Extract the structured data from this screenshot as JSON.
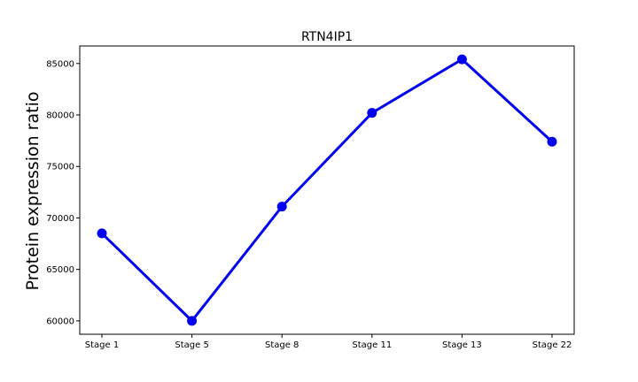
{
  "chart_data": {
    "type": "line",
    "title": "RTN4IP1",
    "xlabel": "",
    "ylabel": "Protein expression ratio",
    "categories": [
      "Stage 1",
      "Stage 5",
      "Stage 8",
      "Stage 11",
      "Stage 13",
      "Stage 22"
    ],
    "series": [
      {
        "values": [
          68500,
          60000,
          71100,
          80200,
          85400,
          77400
        ],
        "color": "#0000ee"
      }
    ],
    "ylim": [
      58700,
      86700
    ],
    "yticks": [
      60000,
      65000,
      70000,
      75000,
      80000,
      85000
    ],
    "ytick_labels": [
      "60000",
      "65000",
      "70000",
      "75000",
      "80000",
      "85000"
    ],
    "grid": false,
    "legend": "none"
  }
}
